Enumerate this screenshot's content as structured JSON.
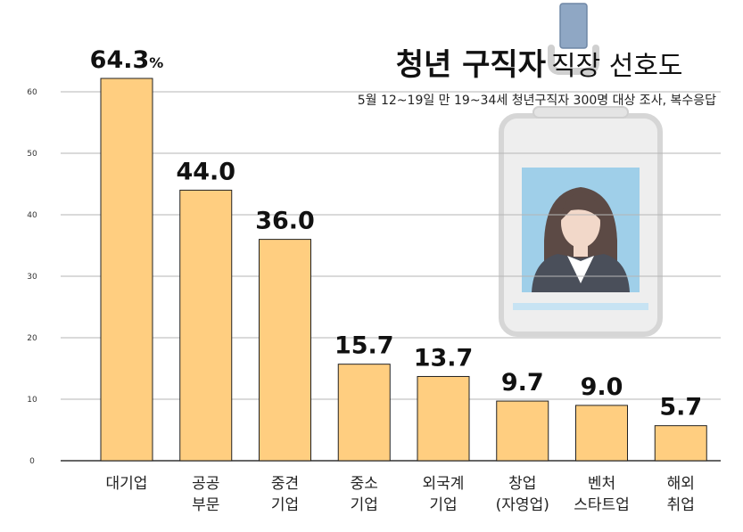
{
  "chart_data": {
    "type": "bar",
    "title_bold": "청년 구직자",
    "title_rest": "직장 선호도",
    "subtitle": "5월 12~19일 만 19~34세 청년구직자 300명 대상 조사, 복수응답",
    "categories": [
      [
        "대기업"
      ],
      [
        "공공",
        "부문"
      ],
      [
        "중견",
        "기업"
      ],
      [
        "중소",
        "기업"
      ],
      [
        "외국계",
        "기업"
      ],
      [
        "창업",
        "(자영업)"
      ],
      [
        "벤처",
        "스타트업"
      ],
      [
        "해외",
        "취업"
      ]
    ],
    "values": [
      64.3,
      44.0,
      36.0,
      15.7,
      13.7,
      9.7,
      9.0,
      5.7
    ],
    "value_labels": [
      "64.3",
      "44.0",
      "36.0",
      "15.7",
      "13.7",
      "9.7",
      "9.0",
      "5.7"
    ],
    "first_value_unit": "%",
    "ylim": [
      0,
      60
    ],
    "yticks": [
      0,
      10,
      20,
      30,
      40,
      50,
      60
    ],
    "grid": true,
    "bar_color": "#FFCE80",
    "bar_stroke": "#222222",
    "grid_color": "#B5B5B5"
  }
}
